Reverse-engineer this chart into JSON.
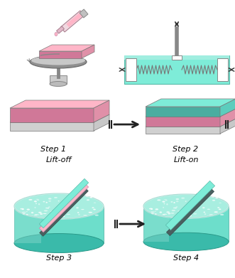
{
  "background_color": "#ffffff",
  "pink_color": "#FFB6C8",
  "pink_side": "#E090A8",
  "pink_front": "#D07898",
  "teal_color": "#7EECD8",
  "teal_side": "#5CCDBD",
  "teal_front": "#4AADA0",
  "white_top": "#E8E8E8",
  "white_side": "#C8C8C8",
  "white_front": "#D0D0D0",
  "step_labels": [
    "Step 1",
    "Step 2",
    "Step 3",
    "Step 4"
  ],
  "lift_labels": [
    "Lift-off",
    "Lift-on"
  ],
  "arrow_color": "#111111",
  "gray1": "#AAAAAA",
  "gray2": "#888888",
  "gray3": "#666666",
  "dish_teal": "#6DDECB",
  "dish_side": "#3ABAAA",
  "dish_top_light": "#B0EEE0",
  "dish_top_foam": "#FFFFFF"
}
